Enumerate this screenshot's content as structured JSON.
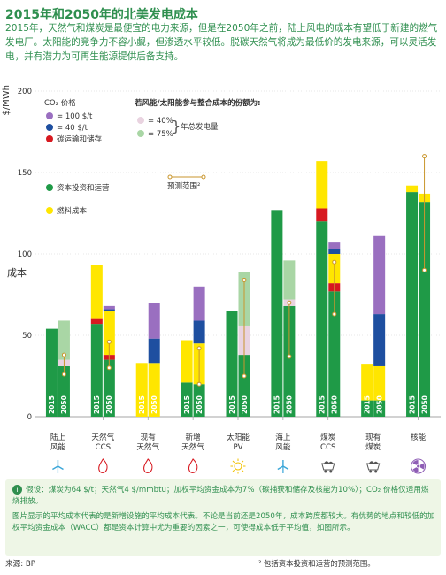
{
  "title": "2015年和2050年的北美发电成本",
  "intro": "2015年，天然气和煤炭是最便宜的电力来源，但是在2050年之前，陆上风电的成本有望低于新建的燃气发电厂。太阳能的竞争力不容小觑，但渗透水平较低。脱碳天然气将成为最低价的发电来源，可以灵活发电，并有潜力为可再生能源提供后备支持。",
  "y_unit": "$/MWh",
  "y_label": "成本",
  "legend": {
    "co2_title": "CO₂ 价格",
    "co2_100": "= 100 $/t",
    "co2_40": "= 40 $/t",
    "ccs": "碳运输和储存",
    "capex": "资本投资和运营",
    "fuel": "燃料成本",
    "integration_title": "若风能/太阳能参与整合成本的份额为:",
    "share_40": "= 40%",
    "share_75": "= 75%",
    "annual_gen": "年总发电量",
    "range": "预测范围²"
  },
  "colors": {
    "capex": "#1f9a47",
    "capex_light": "#a9d6a5",
    "fuel": "#ffe600",
    "ccs": "#d71920",
    "co2_40": "#1e4fa0",
    "co2_100": "#9a6fc0",
    "share_40": "#e9d3e0",
    "share_75": "#a9d6a5",
    "range": "#c9962d"
  },
  "chart_data": {
    "type": "bar",
    "stacked": true,
    "ylim": [
      0,
      200
    ],
    "yticks": [
      0,
      50,
      100,
      150,
      200
    ],
    "year_labels": [
      "2015",
      "2050"
    ],
    "categories": [
      {
        "label": "陆上\n风能",
        "icon": "wind-turbine-icon",
        "bars": [
          {
            "year": "2015",
            "segments": [
              {
                "type": "capex",
                "value": 54
              }
            ]
          },
          {
            "year": "2050",
            "segments": [
              {
                "type": "capex",
                "value": 31
              },
              {
                "type": "share_40",
                "value": 4
              },
              {
                "type": "share_75",
                "value": 24
              }
            ],
            "range": [
              26,
              38
            ]
          }
        ]
      },
      {
        "label": "天然气\nCCS",
        "icon": "gas-flame-icon",
        "bars": [
          {
            "year": "2015",
            "segments": [
              {
                "type": "capex",
                "value": 57
              },
              {
                "type": "ccs",
                "value": 3
              },
              {
                "type": "fuel",
                "value": 33
              }
            ]
          },
          {
            "year": "2050",
            "segments": [
              {
                "type": "capex",
                "value": 35
              },
              {
                "type": "ccs",
                "value": 3
              },
              {
                "type": "fuel",
                "value": 27
              },
              {
                "type": "co2_40",
                "value": 1
              },
              {
                "type": "co2_100",
                "value": 2
              }
            ],
            "range": [
              30,
              46
            ]
          }
        ]
      },
      {
        "label": "现有\n天然气",
        "icon": "gas-flame-icon",
        "bars": [
          {
            "year": "2015",
            "segments": [
              {
                "type": "fuel",
                "value": 33
              }
            ]
          },
          {
            "year": "2050",
            "segments": [
              {
                "type": "fuel",
                "value": 33
              },
              {
                "type": "co2_40",
                "value": 15
              },
              {
                "type": "co2_100",
                "value": 22
              }
            ]
          }
        ]
      },
      {
        "label": "新增\n天然气",
        "icon": "gas-flame-icon",
        "bars": [
          {
            "year": "2015",
            "segments": [
              {
                "type": "capex",
                "value": 21
              },
              {
                "type": "fuel",
                "value": 26
              }
            ]
          },
          {
            "year": "2050",
            "segments": [
              {
                "type": "capex",
                "value": 20
              },
              {
                "type": "fuel",
                "value": 25
              },
              {
                "type": "co2_40",
                "value": 14
              },
              {
                "type": "co2_100",
                "value": 21
              }
            ],
            "range": [
              20,
              42
            ]
          }
        ]
      },
      {
        "label": "太阳能\nPV",
        "icon": "sun-icon",
        "bars": [
          {
            "year": "2015",
            "segments": [
              {
                "type": "capex",
                "value": 65
              }
            ]
          },
          {
            "year": "2050",
            "segments": [
              {
                "type": "capex",
                "value": 38
              },
              {
                "type": "share_40",
                "value": 18
              },
              {
                "type": "share_75",
                "value": 33
              }
            ],
            "range": [
              25,
              84
            ]
          }
        ]
      },
      {
        "label": "海上\n风能",
        "icon": "wind-turbine-icon",
        "bars": [
          {
            "year": "2015",
            "segments": [
              {
                "type": "capex",
                "value": 127
              }
            ]
          },
          {
            "year": "2050",
            "segments": [
              {
                "type": "capex",
                "value": 68
              },
              {
                "type": "share_40",
                "value": 4
              },
              {
                "type": "share_75",
                "value": 24
              }
            ],
            "range": [
              37,
              70
            ]
          }
        ]
      },
      {
        "label": "煤炭\nCCS",
        "icon": "coal-cart-icon",
        "bars": [
          {
            "year": "2015",
            "segments": [
              {
                "type": "capex",
                "value": 120
              },
              {
                "type": "ccs",
                "value": 8
              },
              {
                "type": "fuel",
                "value": 29
              }
            ]
          },
          {
            "year": "2050",
            "segments": [
              {
                "type": "capex",
                "value": 77
              },
              {
                "type": "ccs",
                "value": 5
              },
              {
                "type": "fuel",
                "value": 18
              },
              {
                "type": "co2_40",
                "value": 3
              },
              {
                "type": "co2_100",
                "value": 4
              }
            ],
            "range": [
              63,
              95
            ]
          }
        ]
      },
      {
        "label": "现有\n煤炭",
        "icon": "coal-cart-icon",
        "bars": [
          {
            "year": "2015",
            "segments": [
              {
                "type": "capex",
                "value": 10
              },
              {
                "type": "fuel",
                "value": 22
              }
            ]
          },
          {
            "year": "2050",
            "segments": [
              {
                "type": "capex",
                "value": 10
              },
              {
                "type": "fuel",
                "value": 21
              },
              {
                "type": "co2_40",
                "value": 32
              },
              {
                "type": "co2_100",
                "value": 48
              }
            ]
          }
        ]
      },
      {
        "label": "核能",
        "icon": "nuclear-icon",
        "bars": [
          {
            "year": "2015",
            "segments": [
              {
                "type": "capex",
                "value": 138
              },
              {
                "type": "fuel",
                "value": 4
              }
            ]
          },
          {
            "year": "2050",
            "segments": [
              {
                "type": "capex",
                "value": 132
              },
              {
                "type": "fuel",
                "value": 5
              }
            ],
            "range": [
              90,
              160
            ]
          }
        ]
      }
    ]
  },
  "footnote_1": "假设：煤炭为64 $/t；天然气4 $/mmbtu；加权平均资金成本为7%（碳捕获和储存及核能为10%）；CO₂ 价格仅适用燃烧排放。",
  "footnote_2": "图片显示的平均成本代表的是新增设施的平均成本代表。不论是当前还是2050年，成本跨度都较大。有优势的地点和较低的加权平均资金成本（WACC）都是资本计算中尤为重要的因素之一，可使得成本低于平均值，如图所示。",
  "source": "来源: BP",
  "footnote_range": "² 包括资本投资和运营的预测范围。"
}
